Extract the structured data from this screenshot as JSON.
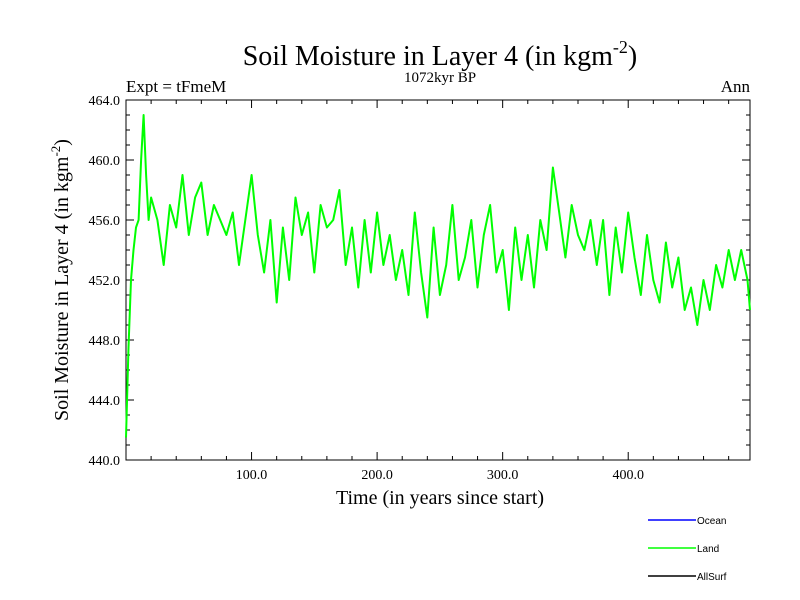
{
  "chart_data": {
    "type": "line",
    "title": "Soil Moisture in Layer 4 (in kgm",
    "title_superscript": "-2",
    "title_close": ")",
    "subtitle": "1072kyr BP",
    "left_label": "Expt = tFmeM",
    "right_label": "Ann",
    "xlabel": "Time (in years since start)",
    "ylabel": "Soil Moisture in Layer 4 (in kgm",
    "ylabel_superscript": "-2",
    "ylabel_close": ")",
    "xlim": [
      0,
      497
    ],
    "ylim": [
      440.0,
      464.0
    ],
    "xticks": [
      100,
      200,
      300,
      400
    ],
    "xtick_labels": [
      "100.0",
      "200.0",
      "300.0",
      "400.0"
    ],
    "yticks": [
      440,
      444,
      448,
      452,
      456,
      460,
      464
    ],
    "ytick_labels": [
      "440.0",
      "444.0",
      "448.0",
      "452.0",
      "456.0",
      "460.0",
      "464.0"
    ],
    "series": [
      {
        "name": "Land",
        "color": "#00ff00",
        "x": [
          0,
          2,
          4,
          6,
          8,
          10,
          12,
          14,
          16,
          18,
          20,
          25,
          30,
          35,
          40,
          45,
          50,
          55,
          60,
          65,
          70,
          75,
          80,
          85,
          90,
          95,
          100,
          105,
          110,
          115,
          120,
          125,
          130,
          135,
          140,
          145,
          150,
          155,
          160,
          165,
          170,
          175,
          180,
          185,
          190,
          195,
          200,
          205,
          210,
          215,
          220,
          225,
          230,
          235,
          240,
          245,
          250,
          255,
          260,
          265,
          270,
          275,
          280,
          285,
          290,
          295,
          300,
          305,
          310,
          315,
          320,
          325,
          330,
          335,
          340,
          345,
          350,
          355,
          360,
          365,
          370,
          375,
          380,
          385,
          390,
          395,
          400,
          405,
          410,
          415,
          420,
          425,
          430,
          435,
          440,
          445,
          450,
          455,
          460,
          465,
          470,
          475,
          480,
          485,
          490,
          495,
          497
        ],
        "values": [
          441.5,
          447.5,
          452.0,
          454.0,
          455.5,
          456.0,
          460.0,
          463.0,
          459.0,
          456.0,
          457.5,
          456.0,
          453.0,
          457.0,
          455.5,
          459.0,
          455.0,
          457.5,
          458.5,
          455.0,
          457.0,
          456.0,
          455.0,
          456.5,
          453.0,
          456.0,
          459.0,
          455.0,
          452.5,
          456.0,
          450.5,
          455.5,
          452.0,
          457.5,
          455.0,
          456.5,
          452.5,
          457.0,
          455.5,
          456.0,
          458.0,
          453.0,
          455.5,
          451.5,
          456.0,
          452.5,
          456.5,
          453.0,
          455.0,
          452.0,
          454.0,
          451.0,
          456.5,
          452.5,
          449.5,
          455.5,
          451.0,
          453.0,
          457.0,
          452.0,
          453.5,
          456.0,
          451.5,
          455.0,
          457.0,
          452.5,
          454.0,
          450.0,
          455.5,
          452.0,
          455.0,
          451.5,
          456.0,
          454.0,
          459.5,
          456.5,
          453.5,
          457.0,
          455.0,
          454.0,
          456.0,
          453.0,
          456.0,
          451.0,
          455.5,
          452.5,
          456.5,
          453.5,
          451.0,
          455.0,
          452.0,
          450.5,
          454.5,
          451.5,
          453.5,
          450.0,
          451.5,
          449.0,
          452.0,
          450.0,
          453.0,
          451.5,
          454.0,
          452.0,
          454.0,
          452.0,
          450.0
        ]
      }
    ],
    "legend": [
      {
        "name": "Ocean",
        "color": "#0000ff"
      },
      {
        "name": "Land",
        "color": "#00ff00"
      },
      {
        "name": "AllSurf",
        "color": "#000000"
      }
    ],
    "legend_position": "bottom-right",
    "grid": false
  }
}
